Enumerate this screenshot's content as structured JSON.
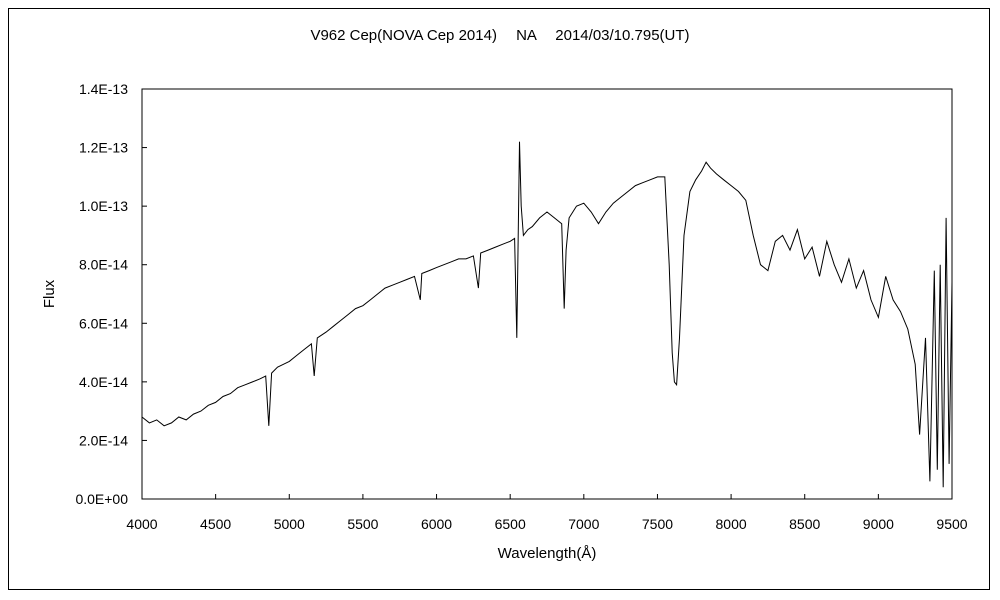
{
  "chart_data": {
    "type": "line",
    "title": "V962 Cep(NOVA Cep 2014)　 NA　 2014/03/10.795(UT)",
    "xlabel": "Wavelength(Å)",
    "ylabel": "Flux",
    "xlim": [
      4000,
      9500
    ],
    "ylim": [
      0,
      1.4e-13
    ],
    "x_ticks": [
      4000,
      4500,
      5000,
      5500,
      6000,
      6500,
      7000,
      7500,
      8000,
      8500,
      9000,
      9500
    ],
    "x_tick_labels": [
      "4000",
      "4500",
      "5000",
      "5500",
      "6000",
      "6500",
      "7000",
      "7500",
      "8000",
      "8500",
      "9000",
      "9500"
    ],
    "y_ticks": [
      0,
      2e-14,
      4e-14,
      6e-14,
      8e-14,
      1e-13,
      1.2e-13,
      1.4e-13
    ],
    "y_tick_labels": [
      "0.0E+00",
      "2.0E-14",
      "4.0E-14",
      "6.0E-14",
      "8.0E-14",
      "1.0E-13",
      "1.2E-13",
      "1.4E-13"
    ],
    "grid": false,
    "legend": "none",
    "line_color": "#000000",
    "series": [
      {
        "x": [
          4000,
          4050,
          4100,
          4150,
          4200,
          4250,
          4300,
          4350,
          4400,
          4450,
          4500,
          4550,
          4600,
          4650,
          4700,
          4750,
          4800,
          4840,
          4861,
          4880,
          4920,
          4960,
          5000,
          5050,
          5100,
          5150,
          5169,
          5190,
          5250,
          5300,
          5350,
          5400,
          5450,
          5500,
          5550,
          5600,
          5650,
          5700,
          5750,
          5800,
          5850,
          5890,
          5900,
          5950,
          6000,
          6050,
          6100,
          6150,
          6200,
          6250,
          6284,
          6300,
          6350,
          6400,
          6450,
          6500,
          6530,
          6545,
          6563,
          6575,
          6590,
          6620,
          6650,
          6700,
          6750,
          6800,
          6850,
          6867,
          6880,
          6900,
          6950,
          7000,
          7050,
          7100,
          7150,
          7200,
          7250,
          7300,
          7350,
          7400,
          7450,
          7500,
          7550,
          7580,
          7600,
          7615,
          7630,
          7650,
          7680,
          7720,
          7760,
          7800,
          7830,
          7860,
          7900,
          7950,
          8000,
          8050,
          8100,
          8150,
          8200,
          8250,
          8300,
          8350,
          8400,
          8450,
          8500,
          8550,
          8600,
          8650,
          8700,
          8750,
          8800,
          8850,
          8900,
          8950,
          9000,
          9050,
          9100,
          9150,
          9200,
          9250,
          9280,
          9320,
          9350,
          9380,
          9400,
          9420,
          9440,
          9460,
          9480,
          9500
        ],
        "y": [
          2.8e-14,
          2.6e-14,
          2.7e-14,
          2.5e-14,
          2.6e-14,
          2.8e-14,
          2.7e-14,
          2.9e-14,
          3e-14,
          3.2e-14,
          3.3e-14,
          3.5e-14,
          3.6e-14,
          3.8e-14,
          3.9e-14,
          4e-14,
          4.1e-14,
          4.2e-14,
          2.5e-14,
          4.3e-14,
          4.5e-14,
          4.6e-14,
          4.7e-14,
          4.9e-14,
          5.1e-14,
          5.3e-14,
          4.2e-14,
          5.5e-14,
          5.7e-14,
          5.9e-14,
          6.1e-14,
          6.3e-14,
          6.5e-14,
          6.6e-14,
          6.8e-14,
          7e-14,
          7.2e-14,
          7.3e-14,
          7.4e-14,
          7.5e-14,
          7.6e-14,
          6.8e-14,
          7.7e-14,
          7.8e-14,
          7.9e-14,
          8e-14,
          8.1e-14,
          8.2e-14,
          8.2e-14,
          8.3e-14,
          7.2e-14,
          8.4e-14,
          8.5e-14,
          8.6e-14,
          8.7e-14,
          8.8e-14,
          8.9e-14,
          5.5e-14,
          1.22e-13,
          1e-13,
          9e-14,
          9.2e-14,
          9.3e-14,
          9.6e-14,
          9.8e-14,
          9.6e-14,
          9.4e-14,
          6.5e-14,
          8.5e-14,
          9.6e-14,
          1e-13,
          1.01e-13,
          9.8e-14,
          9.4e-14,
          9.8e-14,
          1.01e-13,
          1.03e-13,
          1.05e-13,
          1.07e-13,
          1.08e-13,
          1.09e-13,
          1.1e-13,
          1.1e-13,
          8e-14,
          5e-14,
          4e-14,
          3.9e-14,
          5.5e-14,
          9e-14,
          1.05e-13,
          1.09e-13,
          1.12e-13,
          1.15e-13,
          1.13e-13,
          1.11e-13,
          1.09e-13,
          1.07e-13,
          1.05e-13,
          1.02e-13,
          9e-14,
          8e-14,
          7.8e-14,
          8.8e-14,
          9e-14,
          8.5e-14,
          9.2e-14,
          8.2e-14,
          8.6e-14,
          7.6e-14,
          8.8e-14,
          8e-14,
          7.4e-14,
          8.2e-14,
          7.2e-14,
          7.8e-14,
          6.8e-14,
          6.2e-14,
          7.6e-14,
          6.8e-14,
          6.4e-14,
          5.8e-14,
          4.6e-14,
          2.2e-14,
          5.5e-14,
          6e-15,
          7.8e-14,
          1e-14,
          8e-14,
          4e-15,
          9.6e-14,
          1.2e-14,
          7.4e-14
        ]
      }
    ]
  }
}
